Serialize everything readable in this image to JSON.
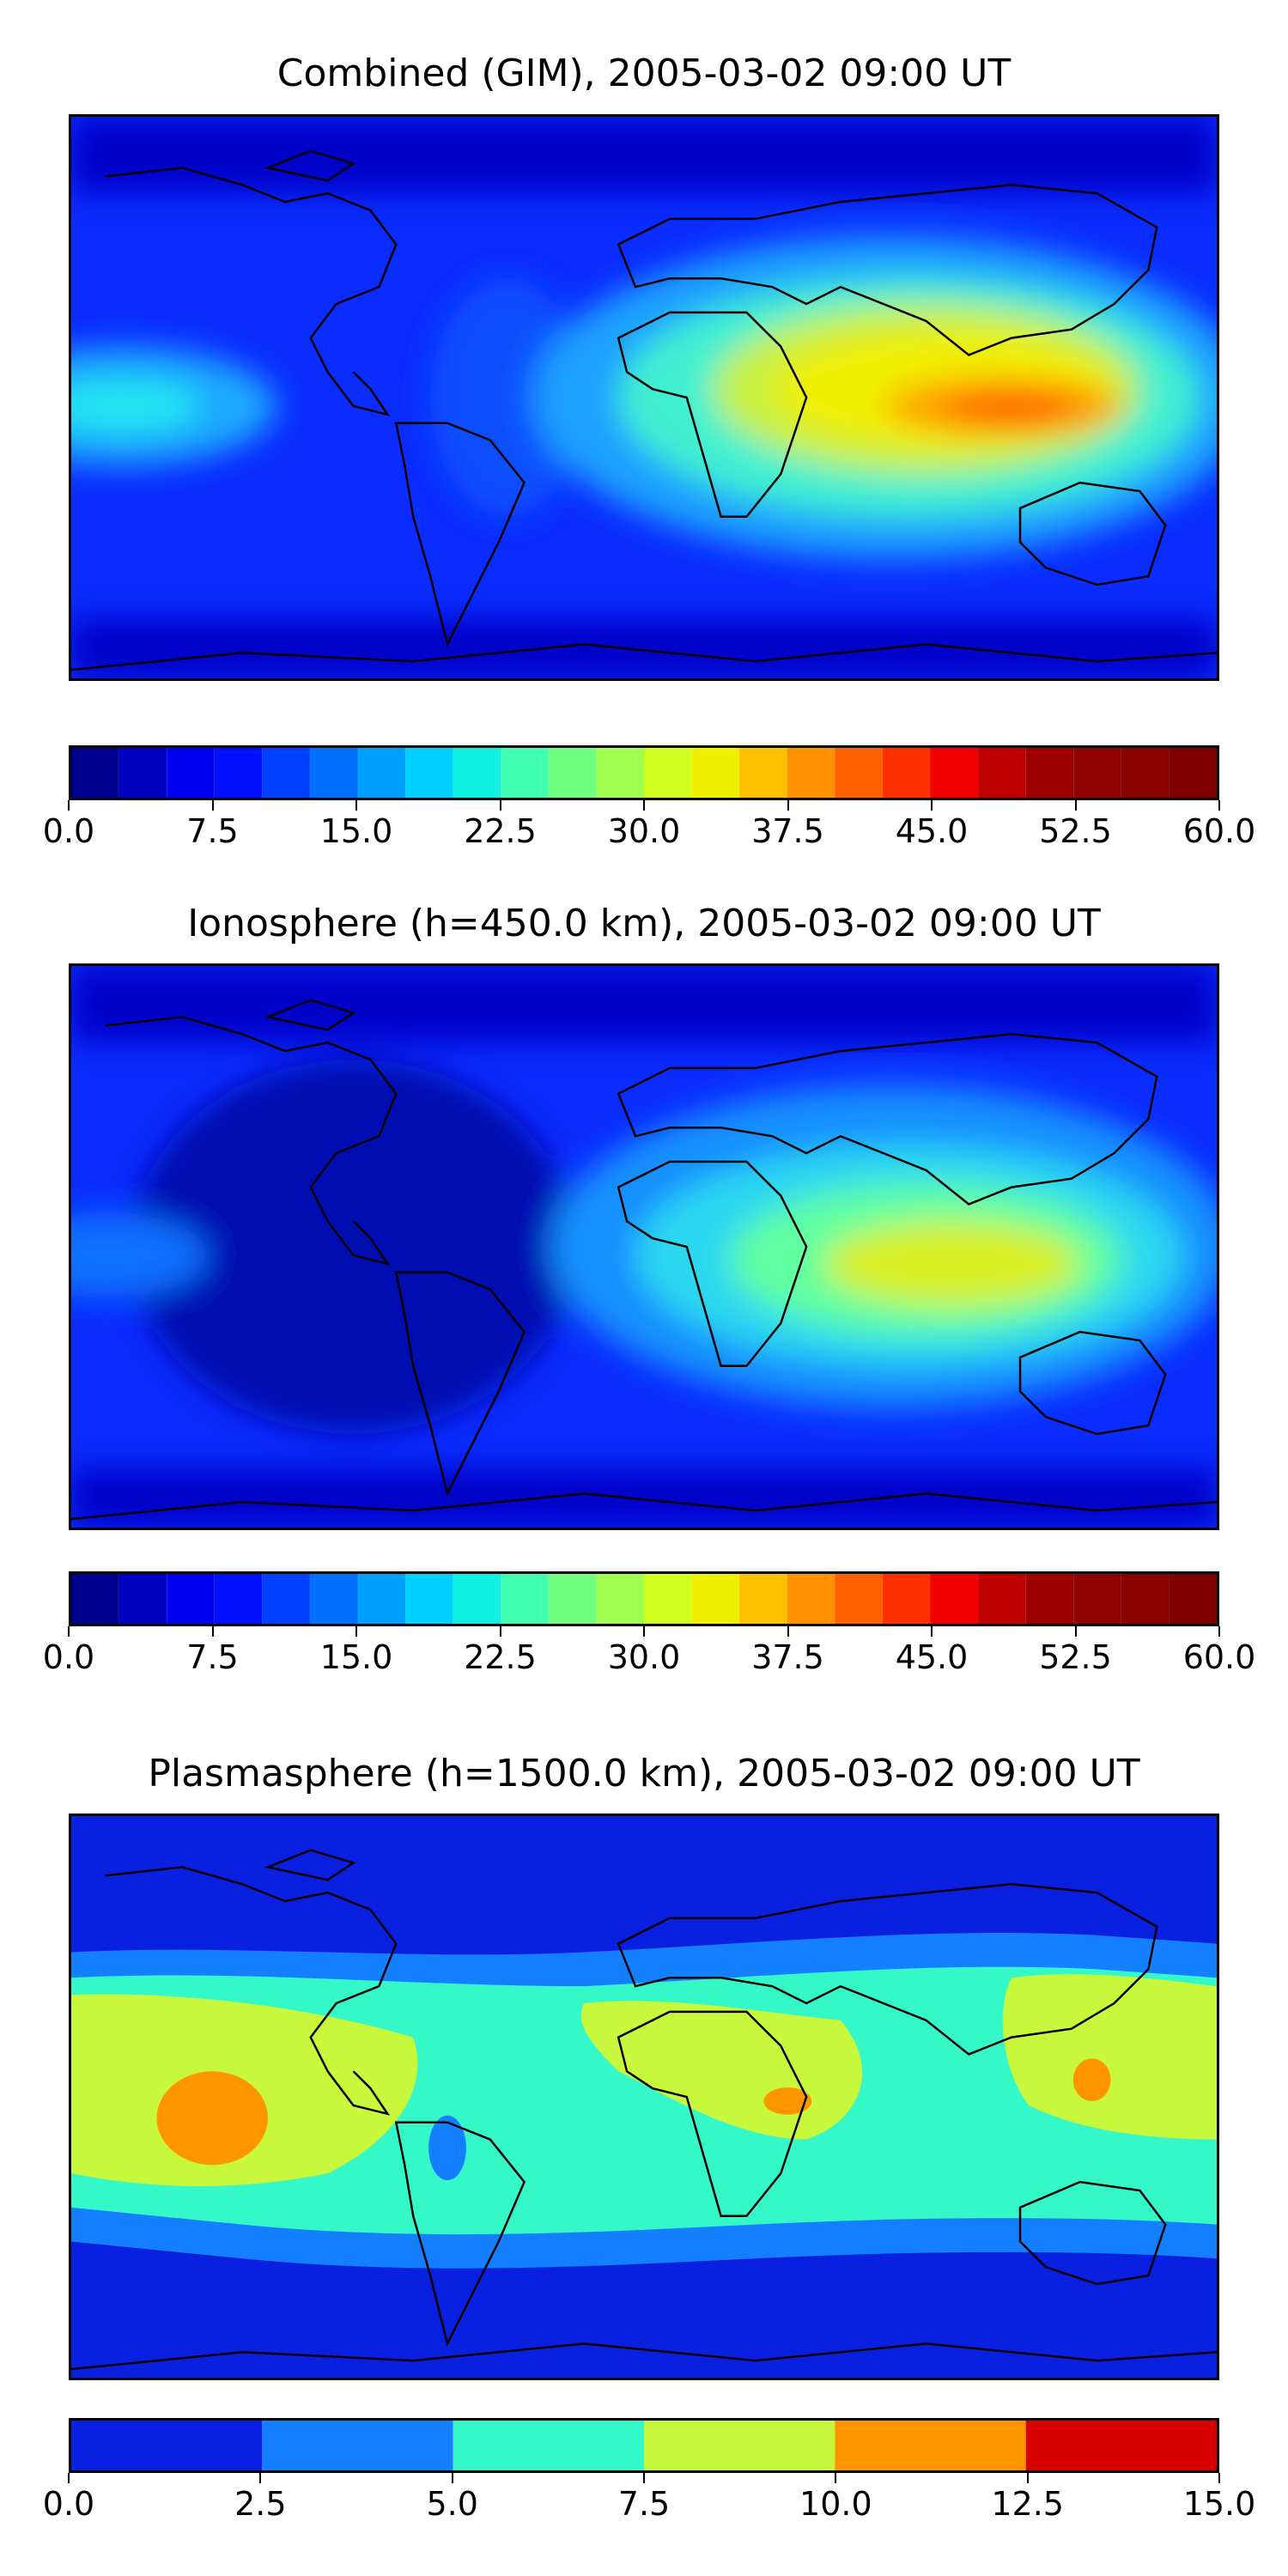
{
  "chart_data": [
    {
      "type": "heatmap",
      "title": "Combined (GIM), 2005-03-02 09:00 UT",
      "colorbar": {
        "ticks": [
          "0.0",
          "7.5",
          "15.0",
          "22.5",
          "30.0",
          "37.5",
          "45.0",
          "52.5",
          "60.0"
        ],
        "range": [
          0,
          60
        ],
        "levels": 24,
        "colormap": "jet"
      },
      "features": [
        {
          "region": "Indian Ocean / Indonesia equatorial band",
          "value": 47
        },
        {
          "region": "Africa / Arabia",
          "value": 38
        },
        {
          "region": "Central Pacific (equatorial)",
          "value": 20
        },
        {
          "region": "Polar regions",
          "value": 5
        }
      ]
    },
    {
      "type": "heatmap",
      "title": "Ionosphere  (h=450.0 km), 2005-03-02 09:00 UT",
      "colorbar": {
        "ticks": [
          "0.0",
          "7.5",
          "15.0",
          "22.5",
          "30.0",
          "37.5",
          "45.0",
          "52.5",
          "60.0"
        ],
        "range": [
          0,
          60
        ],
        "levels": 24,
        "colormap": "jet"
      },
      "features": [
        {
          "region": "Indian Ocean equatorial peak",
          "value": 39
        },
        {
          "region": "Africa / Arabia",
          "value": 32
        },
        {
          "region": "Americas / Atlantic",
          "value": 3
        },
        {
          "region": "Polar regions",
          "value": 5
        }
      ]
    },
    {
      "type": "heatmap",
      "title": "Plasmasphere (h=1500.0 km), 2005-03-02 09:00 UT",
      "colorbar": {
        "ticks": [
          "0.0",
          "2.5",
          "5.0",
          "7.5",
          "10.0",
          "12.5",
          "15.0"
        ],
        "range": [
          0,
          15
        ],
        "levels": 6,
        "colormap": "jet"
      },
      "features": [
        {
          "region": "Central Pacific",
          "value": 11
        },
        {
          "region": "East Africa",
          "value": 11
        },
        {
          "region": "Western Pacific",
          "value": 11
        },
        {
          "region": "South America",
          "value": 3
        },
        {
          "region": "Polar regions",
          "value": 1
        }
      ]
    }
  ]
}
